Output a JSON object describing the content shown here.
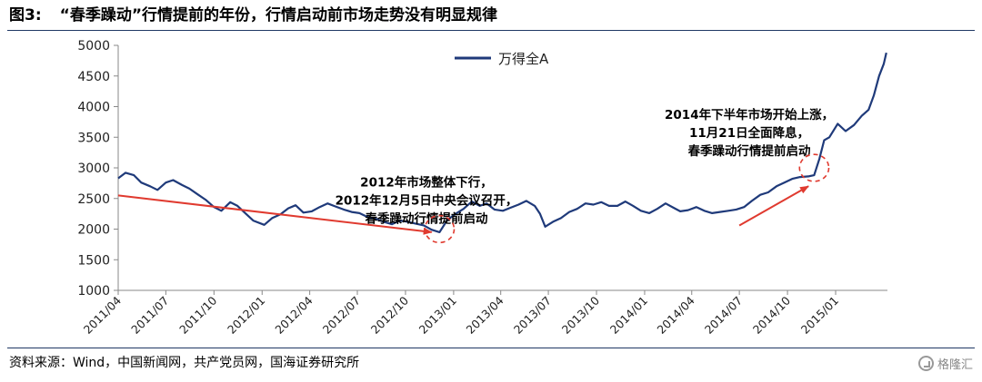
{
  "figure": {
    "number": "图3:",
    "title": "“春季躁动”行情提前的年份，行情启动前市场走势没有明显规律"
  },
  "source": "资料来源：Wind，中国新闻网，共产党员网，国海证券研究所",
  "watermark": "格隆汇",
  "colors": {
    "series": "#1f3a7a",
    "arrow": "#e03a2f",
    "circle": "#e03a2f",
    "axis": "#888888"
  },
  "chart_data": {
    "type": "line",
    "title": "",
    "xlabel": "",
    "ylabel": "",
    "ylim": [
      1000,
      5000
    ],
    "yticks": [
      1000,
      1500,
      2000,
      2500,
      3000,
      3500,
      4000,
      4500,
      5000
    ],
    "xlim": [
      "2011-04-01",
      "2015-04-10"
    ],
    "xticks": [
      "2011/04",
      "2011/07",
      "2011/10",
      "2012/01",
      "2012/04",
      "2012/07",
      "2012/10",
      "2013/01",
      "2013/04",
      "2013/07",
      "2013/10",
      "2014/01",
      "2014/04",
      "2014/07",
      "2014/10",
      "2015/01"
    ],
    "legend": {
      "position": "top-center"
    },
    "grid": false,
    "series": [
      {
        "name": "万得全A",
        "points": [
          [
            "2011-04-01",
            2830
          ],
          [
            "2011-04-15",
            2920
          ],
          [
            "2011-05-01",
            2880
          ],
          [
            "2011-05-15",
            2760
          ],
          [
            "2011-06-01",
            2700
          ],
          [
            "2011-06-15",
            2640
          ],
          [
            "2011-07-01",
            2760
          ],
          [
            "2011-07-15",
            2800
          ],
          [
            "2011-08-01",
            2720
          ],
          [
            "2011-08-15",
            2660
          ],
          [
            "2011-09-01",
            2560
          ],
          [
            "2011-09-15",
            2480
          ],
          [
            "2011-10-01",
            2360
          ],
          [
            "2011-10-15",
            2300
          ],
          [
            "2011-11-01",
            2440
          ],
          [
            "2011-11-15",
            2380
          ],
          [
            "2011-12-01",
            2250
          ],
          [
            "2011-12-15",
            2140
          ],
          [
            "2012-01-05",
            2070
          ],
          [
            "2012-01-20",
            2180
          ],
          [
            "2012-02-05",
            2240
          ],
          [
            "2012-02-20",
            2340
          ],
          [
            "2012-03-05",
            2390
          ],
          [
            "2012-03-20",
            2270
          ],
          [
            "2012-04-05",
            2290
          ],
          [
            "2012-04-20",
            2360
          ],
          [
            "2012-05-05",
            2420
          ],
          [
            "2012-05-20",
            2370
          ],
          [
            "2012-06-05",
            2320
          ],
          [
            "2012-06-20",
            2280
          ],
          [
            "2012-07-05",
            2260
          ],
          [
            "2012-07-20",
            2200
          ],
          [
            "2012-08-05",
            2170
          ],
          [
            "2012-08-20",
            2120
          ],
          [
            "2012-09-05",
            2080
          ],
          [
            "2012-09-20",
            2140
          ],
          [
            "2012-10-05",
            2120
          ],
          [
            "2012-10-20",
            2090
          ],
          [
            "2012-11-05",
            2060
          ],
          [
            "2012-11-20",
            1990
          ],
          [
            "2012-12-05",
            1950
          ],
          [
            "2012-12-20",
            2150
          ],
          [
            "2013-01-05",
            2250
          ],
          [
            "2013-01-20",
            2330
          ],
          [
            "2013-02-05",
            2450
          ],
          [
            "2013-02-20",
            2380
          ],
          [
            "2013-03-05",
            2420
          ],
          [
            "2013-03-20",
            2320
          ],
          [
            "2013-04-05",
            2300
          ],
          [
            "2013-04-20",
            2350
          ],
          [
            "2013-05-05",
            2400
          ],
          [
            "2013-05-20",
            2460
          ],
          [
            "2013-06-05",
            2380
          ],
          [
            "2013-06-15",
            2250
          ],
          [
            "2013-06-25",
            2040
          ],
          [
            "2013-07-10",
            2120
          ],
          [
            "2013-07-25",
            2180
          ],
          [
            "2013-08-10",
            2280
          ],
          [
            "2013-08-25",
            2330
          ],
          [
            "2013-09-10",
            2420
          ],
          [
            "2013-09-25",
            2400
          ],
          [
            "2013-10-10",
            2440
          ],
          [
            "2013-10-25",
            2380
          ],
          [
            "2013-11-10",
            2380
          ],
          [
            "2013-11-25",
            2450
          ],
          [
            "2013-12-10",
            2380
          ],
          [
            "2013-12-25",
            2300
          ],
          [
            "2014-01-10",
            2260
          ],
          [
            "2014-01-25",
            2330
          ],
          [
            "2014-02-10",
            2420
          ],
          [
            "2014-02-25",
            2350
          ],
          [
            "2014-03-10",
            2290
          ],
          [
            "2014-03-25",
            2310
          ],
          [
            "2014-04-10",
            2360
          ],
          [
            "2014-04-25",
            2300
          ],
          [
            "2014-05-10",
            2260
          ],
          [
            "2014-05-25",
            2280
          ],
          [
            "2014-06-10",
            2300
          ],
          [
            "2014-06-25",
            2320
          ],
          [
            "2014-07-10",
            2360
          ],
          [
            "2014-07-25",
            2460
          ],
          [
            "2014-08-10",
            2560
          ],
          [
            "2014-08-25",
            2600
          ],
          [
            "2014-09-10",
            2700
          ],
          [
            "2014-09-25",
            2760
          ],
          [
            "2014-10-10",
            2820
          ],
          [
            "2014-10-25",
            2850
          ],
          [
            "2014-11-10",
            2860
          ],
          [
            "2014-11-21",
            2880
          ],
          [
            "2014-12-01",
            3150
          ],
          [
            "2014-12-10",
            3450
          ],
          [
            "2014-12-20",
            3500
          ],
          [
            "2015-01-05",
            3720
          ],
          [
            "2015-01-20",
            3600
          ],
          [
            "2015-02-05",
            3700
          ],
          [
            "2015-02-20",
            3850
          ],
          [
            "2015-03-05",
            3950
          ],
          [
            "2015-03-15",
            4180
          ],
          [
            "2015-03-25",
            4500
          ],
          [
            "2015-04-03",
            4700
          ],
          [
            "2015-04-08",
            4880
          ]
        ]
      }
    ],
    "annotations": [
      {
        "lines": [
          "2012年市场整体下行，",
          "2012年12月5日中央会议召开，",
          "春季躁动行情提前启动"
        ],
        "anchor": [
          "2012-11-10",
          2700
        ],
        "arrow": {
          "from": [
            "2011-04-01",
            2550
          ],
          "to": [
            "2012-11-20",
            1950
          ]
        },
        "circle": {
          "center": [
            "2012-12-05",
            2000
          ],
          "rx_days": 28,
          "ry": 220
        }
      },
      {
        "lines": [
          "2014年下半年市场开始上涨，",
          "11月21日全面降息，",
          "春季躁动行情提前启动"
        ],
        "anchor": [
          "2014-07-20",
          3800
        ],
        "arrow": {
          "from": [
            "2014-07-01",
            2060
          ],
          "to": [
            "2014-11-10",
            2700
          ]
        },
        "circle": {
          "center": [
            "2014-11-21",
            3000
          ],
          "rx_days": 28,
          "ry": 220
        }
      }
    ]
  }
}
